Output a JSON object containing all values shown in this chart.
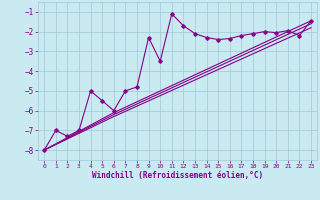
{
  "xlabel": "Windchill (Refroidissement éolien,°C)",
  "background_color": "#c8eaf0",
  "grid_color": "#a0c8d8",
  "line_color": "#880088",
  "xlim": [
    -0.5,
    23.5
  ],
  "ylim": [
    -8.5,
    -0.5
  ],
  "yticks": [
    -8,
    -7,
    -6,
    -5,
    -4,
    -3,
    -2,
    -1
  ],
  "xticks": [
    0,
    1,
    2,
    3,
    4,
    5,
    6,
    7,
    8,
    9,
    10,
    11,
    12,
    13,
    14,
    15,
    16,
    17,
    18,
    19,
    20,
    21,
    22,
    23
  ],
  "jagged_line": {
    "x": [
      0,
      1,
      2,
      3,
      4,
      5,
      6,
      7,
      8,
      9,
      10,
      11,
      12,
      13,
      14,
      15,
      16,
      17,
      18,
      19,
      20,
      21,
      22,
      23
    ],
    "y": [
      -8.0,
      -7.0,
      -7.3,
      -7.0,
      -5.0,
      -5.5,
      -6.0,
      -5.0,
      -4.8,
      -2.3,
      -3.5,
      -1.1,
      -1.7,
      -2.1,
      -2.3,
      -2.4,
      -2.35,
      -2.2,
      -2.1,
      -2.0,
      -2.05,
      -1.95,
      -2.2,
      -1.45
    ]
  },
  "trend_lines": [
    {
      "x": [
        0,
        6,
        23
      ],
      "y": [
        -8.0,
        -6.1,
        -1.45
      ]
    },
    {
      "x": [
        0,
        6,
        23
      ],
      "y": [
        -8.0,
        -6.2,
        -1.6
      ]
    },
    {
      "x": [
        0,
        6,
        23
      ],
      "y": [
        -8.0,
        -6.3,
        -1.8
      ]
    }
  ]
}
